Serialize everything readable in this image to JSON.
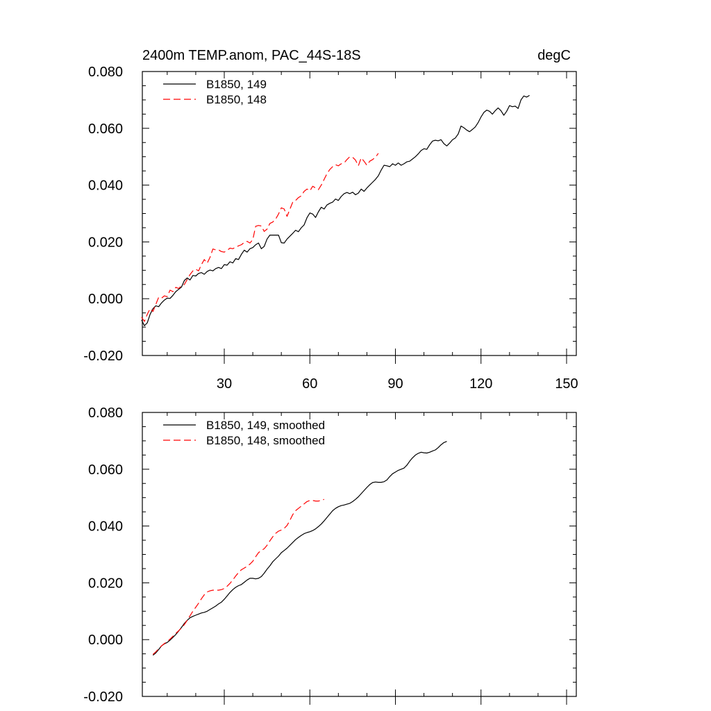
{
  "chart_data": [
    {
      "type": "line",
      "title": "2400m TEMP.anom, PAC_44S-18S",
      "title_right": "degC",
      "xlim": [
        1,
        151
      ],
      "ylim": [
        -0.02,
        0.08
      ],
      "x_ticks": [
        30,
        60,
        90,
        120,
        150
      ],
      "x_tick_labels": [
        "30",
        "60",
        "90",
        "120",
        "150"
      ],
      "y_ticks": [
        -0.02,
        0.0,
        0.02,
        0.04,
        0.06,
        0.08
      ],
      "y_tick_labels": [
        "-0.020",
        "0.000",
        "0.020",
        "0.040",
        "0.060",
        "0.080"
      ],
      "legend_position": "top-left",
      "series": [
        {
          "name": "B1850, 149",
          "color": "#000000",
          "dash": "solid",
          "x_start": 1,
          "values": [
            -0.0075,
            -0.0095,
            -0.0085,
            -0.0055,
            -0.0035,
            -0.0025,
            -0.0028,
            -0.0015,
            -0.0005,
            0.0002,
            0.0001,
            0.0012,
            0.0025,
            0.0033,
            0.0041,
            0.0064,
            0.0073,
            0.0066,
            0.0082,
            0.008,
            0.0089,
            0.0092,
            0.0086,
            0.0096,
            0.0101,
            0.0098,
            0.0106,
            0.011,
            0.0106,
            0.012,
            0.0118,
            0.013,
            0.0126,
            0.0141,
            0.0138,
            0.0156,
            0.0171,
            0.0164,
            0.0176,
            0.018,
            0.019,
            0.0196,
            0.0176,
            0.0184,
            0.021,
            0.0224,
            0.0224,
            0.0224,
            0.0224,
            0.0197,
            0.0196,
            0.021,
            0.022,
            0.023,
            0.0241,
            0.0236,
            0.025,
            0.026,
            0.0285,
            0.0302,
            0.0298,
            0.0286,
            0.0306,
            0.0322,
            0.0316,
            0.033,
            0.0336,
            0.034,
            0.0351,
            0.0346,
            0.036,
            0.037,
            0.0374,
            0.037,
            0.0375,
            0.0366,
            0.0372,
            0.0386,
            0.0378,
            0.039,
            0.04,
            0.041,
            0.042,
            0.0433,
            0.0453,
            0.047,
            0.0468,
            0.0465,
            0.0475,
            0.047,
            0.0478,
            0.047,
            0.0475,
            0.0482,
            0.0484,
            0.0492,
            0.05,
            0.051,
            0.0522,
            0.0528,
            0.0526,
            0.0542,
            0.0555,
            0.0558,
            0.0556,
            0.056,
            0.0546,
            0.0538,
            0.0548,
            0.056,
            0.0566,
            0.058,
            0.0608,
            0.0602,
            0.0594,
            0.0588,
            0.0596,
            0.0605,
            0.062,
            0.064,
            0.0656,
            0.0664,
            0.066,
            0.065,
            0.0662,
            0.0672,
            0.0662,
            0.0646,
            0.066,
            0.068,
            0.0676,
            0.0678,
            0.067,
            0.07,
            0.0714,
            0.071,
            0.0716
          ]
        },
        {
          "name": "B1850, 148",
          "color": "#ff0000",
          "dash": "dashed",
          "x_start": 1,
          "values": [
            -0.0065,
            -0.008,
            -0.0055,
            -0.0035,
            -0.0045,
            -0.002,
            0.0005,
            0.0002,
            0.001,
            0.0007,
            0.003,
            0.0025,
            0.004,
            0.0036,
            0.0046,
            0.005,
            0.0068,
            0.0085,
            0.0098,
            0.0104,
            0.0098,
            0.012,
            0.0138,
            0.0125,
            0.0146,
            0.0175,
            0.0172,
            0.0172,
            0.0166,
            0.0164,
            0.017,
            0.0178,
            0.0176,
            0.0182,
            0.0186,
            0.019,
            0.0198,
            0.0202,
            0.0196,
            0.0208,
            0.0255,
            0.0258,
            0.0256,
            0.0237,
            0.0245,
            0.0265,
            0.027,
            0.028,
            0.0298,
            0.032,
            0.0316,
            0.029,
            0.0315,
            0.034,
            0.0346,
            0.0356,
            0.0362,
            0.0378,
            0.0386,
            0.038,
            0.0396,
            0.039,
            0.0384,
            0.04,
            0.042,
            0.044,
            0.0455,
            0.0465,
            0.0472,
            0.0468,
            0.0475,
            0.0478,
            0.049,
            0.05,
            0.0498,
            0.0488,
            0.0468,
            0.0496,
            0.0484,
            0.047,
            0.0484,
            0.049,
            0.0498,
            0.0512
          ]
        }
      ]
    },
    {
      "type": "line",
      "xlim": [
        1,
        151
      ],
      "ylim": [
        -0.02,
        0.08
      ],
      "x_ticks": [
        30,
        60,
        90,
        120,
        150
      ],
      "y_ticks": [
        -0.02,
        0.0,
        0.02,
        0.04,
        0.06,
        0.08
      ],
      "y_tick_labels": [
        "-0.020",
        "0.000",
        "0.020",
        "0.040",
        "0.060",
        "0.080"
      ],
      "legend_position": "top-left",
      "series": [
        {
          "name": "B1850, 149, smoothed",
          "color": "#000000",
          "dash": "solid",
          "x_start": 5,
          "values": [
            -0.0055,
            -0.0047,
            -0.0035,
            -0.0022,
            -0.0015,
            -0.001,
            -0.0002,
            0.0008,
            0.0018,
            0.003,
            0.0043,
            0.0057,
            0.0068,
            0.0077,
            0.0082,
            0.0086,
            0.009,
            0.0094,
            0.0096,
            0.01,
            0.0106,
            0.0112,
            0.0118,
            0.0126,
            0.0132,
            0.0142,
            0.0154,
            0.0166,
            0.0176,
            0.0184,
            0.019,
            0.0194,
            0.0202,
            0.021,
            0.0216,
            0.0216,
            0.0214,
            0.0216,
            0.0222,
            0.0234,
            0.0248,
            0.026,
            0.0274,
            0.0284,
            0.0294,
            0.0306,
            0.0314,
            0.0322,
            0.0332,
            0.0342,
            0.0352,
            0.036,
            0.0367,
            0.0373,
            0.0377,
            0.038,
            0.0384,
            0.039,
            0.0398,
            0.0407,
            0.0418,
            0.043,
            0.0442,
            0.0454,
            0.0462,
            0.0468,
            0.0472,
            0.0474,
            0.0477,
            0.048,
            0.0486,
            0.0494,
            0.0503,
            0.0514,
            0.0525,
            0.0536,
            0.0546,
            0.0553,
            0.0555,
            0.0554,
            0.0554,
            0.0556,
            0.0562,
            0.0574,
            0.0584,
            0.059,
            0.0596,
            0.06,
            0.0604,
            0.0614,
            0.0628,
            0.064,
            0.065,
            0.0656,
            0.066,
            0.0658,
            0.0657,
            0.066,
            0.0664,
            0.0668,
            0.0676,
            0.0686,
            0.0694,
            0.0698
          ]
        },
        {
          "name": "B1850, 148, smoothed",
          "color": "#ff0000",
          "dash": "dashed",
          "x_start": 5,
          "values": [
            -0.0052,
            -0.0043,
            -0.0032,
            -0.0022,
            -0.0014,
            -0.0007,
            0.0002,
            0.0012,
            0.0022,
            0.0031,
            0.0041,
            0.0053,
            0.0068,
            0.0084,
            0.01,
            0.0114,
            0.0128,
            0.0144,
            0.0158,
            0.0168,
            0.0172,
            0.0174,
            0.0174,
            0.0174,
            0.0176,
            0.018,
            0.0188,
            0.0198,
            0.021,
            0.0224,
            0.0236,
            0.0246,
            0.0252,
            0.0258,
            0.0266,
            0.0276,
            0.0292,
            0.0306,
            0.0314,
            0.032,
            0.0332,
            0.0348,
            0.0362,
            0.0374,
            0.0382,
            0.0386,
            0.0392,
            0.0402,
            0.042,
            0.044,
            0.0454,
            0.0462,
            0.047,
            0.0478,
            0.0486,
            0.049,
            0.049,
            0.0488,
            0.0488,
            0.049,
            0.0494
          ]
        }
      ]
    }
  ]
}
